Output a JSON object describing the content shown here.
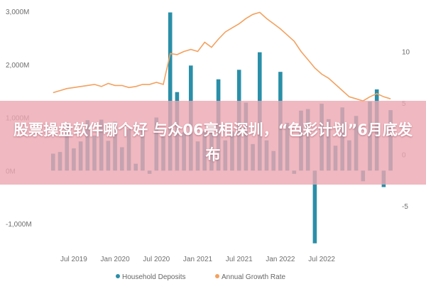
{
  "chart_data": {
    "type": "bar+line",
    "x_ticks": [
      "Jul 2019",
      "Jan 2020",
      "Jul 2020",
      "Jan 2021",
      "Jul 2021",
      "Jan 2022",
      "Jul 2022"
    ],
    "y_left_ticks": [
      "3,000M",
      "2,000M",
      "1,000M",
      "0M",
      "-1,000M"
    ],
    "y_right_ticks": [
      "10",
      "5",
      "0",
      "-5"
    ],
    "y_left_range": [
      -1400,
      3000
    ],
    "y_right_range": [
      -8.8,
      13.9
    ],
    "series": [
      {
        "name": "Household Deposits",
        "type": "bar",
        "color": "#2a8fa8",
        "values": [
          320,
          350,
          900,
          420,
          550,
          950,
          660,
          960,
          560,
          920,
          440,
          780,
          130,
          800,
          -60,
          1000,
          640,
          2980,
          1480,
          720,
          1980,
          550,
          740,
          770,
          1720,
          570,
          740,
          1900,
          1280,
          500,
          2230,
          570,
          370,
          1860,
          900,
          -60,
          1130,
          1160,
          -1370,
          1260,
          970,
          470,
          1190,
          570,
          1030,
          -200,
          1300,
          1530,
          -310,
          1140
        ]
      },
      {
        "name": "Annual Growth Rate",
        "type": "line",
        "color": "#f3a15f",
        "values": [
          6.0,
          6.2,
          6.4,
          6.5,
          6.6,
          6.7,
          6.8,
          6.6,
          6.9,
          6.7,
          6.7,
          6.5,
          6.6,
          6.8,
          6.8,
          7.0,
          6.8,
          9.8,
          9.7,
          10.0,
          10.2,
          10.0,
          10.9,
          10.4,
          11.2,
          11.9,
          12.3,
          12.7,
          13.2,
          13.6,
          13.8,
          13.2,
          12.7,
          12.2,
          11.6,
          11.0,
          10.0,
          9.2,
          8.4,
          7.8,
          7.4,
          6.8,
          6.2,
          5.6,
          5.4,
          5.2,
          5.6,
          5.9,
          5.6,
          5.4
        ]
      }
    ],
    "legend": {
      "placement": "bottom-center",
      "items": [
        "Household Deposits",
        "Annual Growth Rate"
      ]
    },
    "grid": false
  },
  "overlay": {
    "title": "股票操盘软件哪个好 与众06亮相深圳，“色彩计划”6月底发布",
    "color": "#eca6b0"
  }
}
